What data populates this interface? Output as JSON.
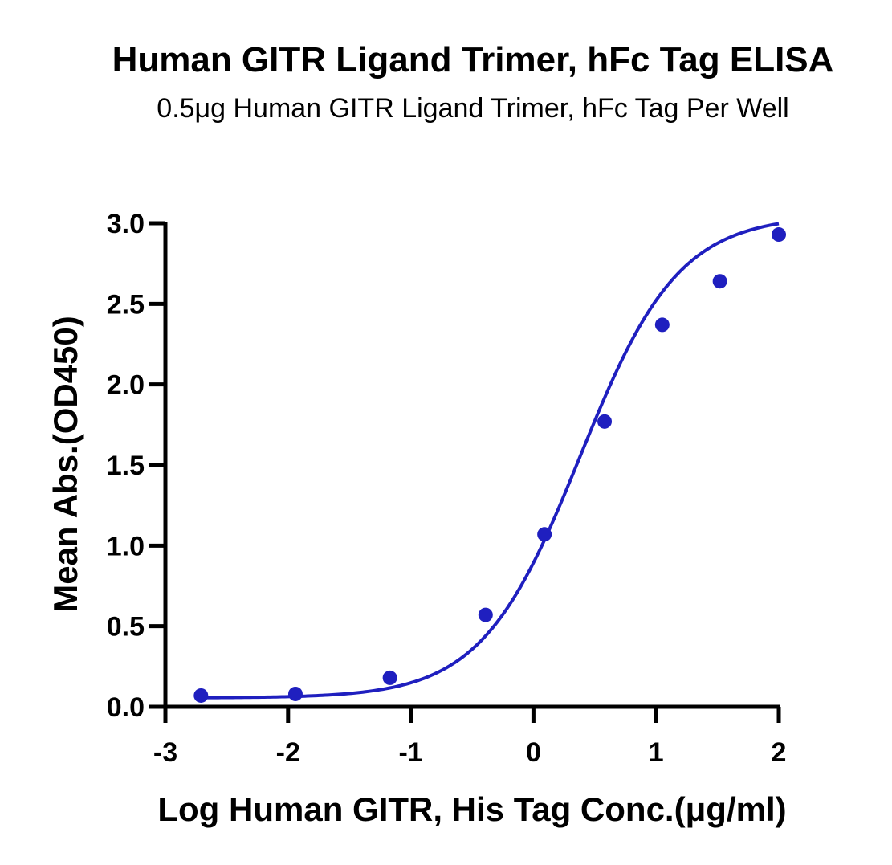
{
  "chart_data": {
    "type": "scatter",
    "title": "Human GITR Ligand Trimer, hFc Tag ELISA",
    "subtitle": "0.5μg Human GITR Ligand Trimer, hFc Tag Per Well",
    "xlabel": "Log Human GITR, His Tag Conc.(μg/ml)",
    "ylabel": "Mean Abs.(OD450)",
    "xlim": [
      -3,
      2
    ],
    "ylim": [
      0,
      3
    ],
    "xticks": [
      "-3",
      "-2",
      "-1",
      "0",
      "1",
      "2"
    ],
    "yticks": [
      "0.0",
      "0.5",
      "1.0",
      "1.5",
      "2.0",
      "2.5",
      "3.0"
    ],
    "grid": false,
    "color": "#1f1fbf",
    "x": [
      -2.71,
      -1.94,
      -1.17,
      -0.39,
      0.09,
      0.58,
      1.05,
      1.52,
      2.0
    ],
    "y": [
      0.07,
      0.08,
      0.18,
      0.57,
      1.07,
      1.77,
      2.37,
      2.64,
      2.93
    ],
    "fit": {
      "model": "4PL",
      "bottom": 0.055,
      "top": 3.05,
      "logEC50": 0.38,
      "hill": 1.08
    }
  }
}
